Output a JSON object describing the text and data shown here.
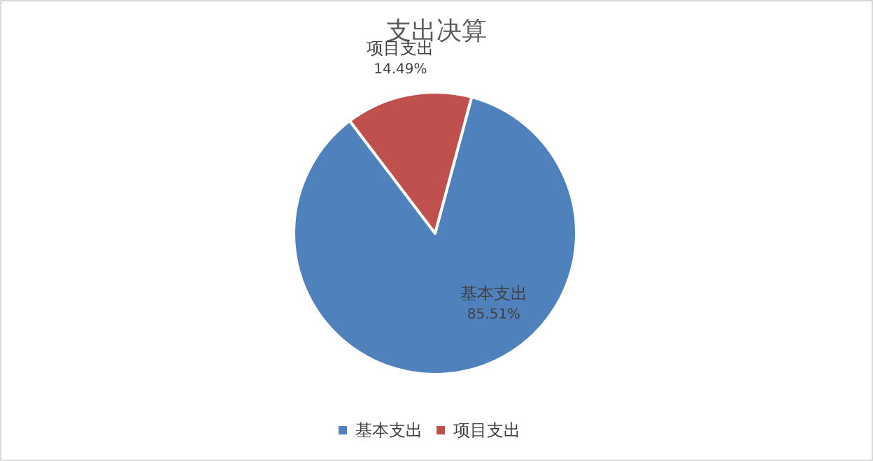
{
  "chart_data": {
    "type": "pie",
    "title": "支出决算",
    "categories": [
      "基本支出",
      "项目支出"
    ],
    "values": [
      85.51,
      14.49
    ],
    "value_labels": [
      "85.51%",
      "14.49%"
    ],
    "colors": [
      "#4f81bd",
      "#c0504d"
    ],
    "legend": "bottom"
  }
}
